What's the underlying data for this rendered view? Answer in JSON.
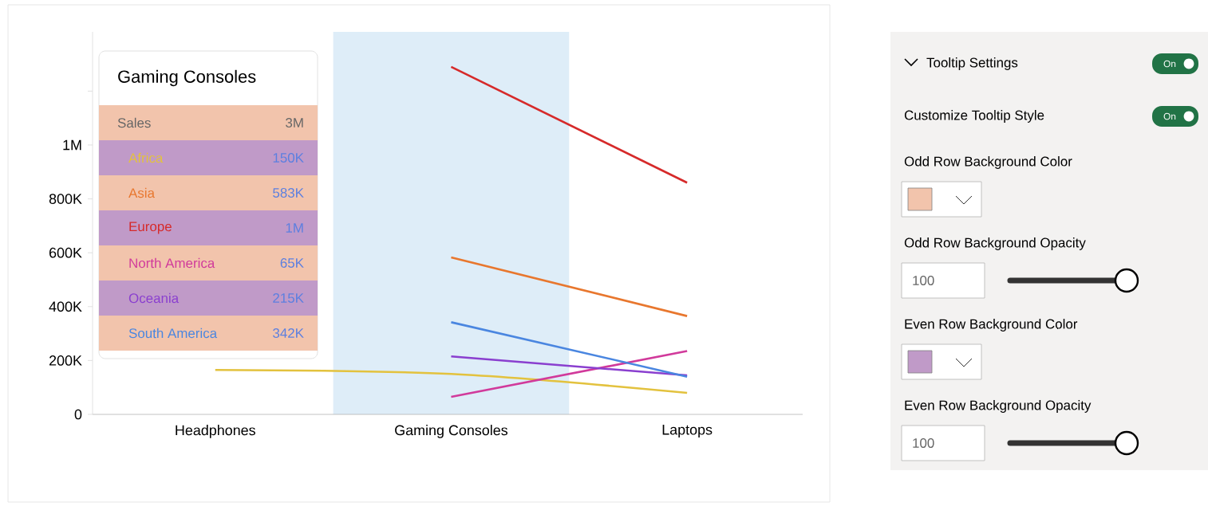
{
  "chart_data": {
    "type": "line",
    "categories": [
      "Headphones",
      "Gaming Consoles",
      "Laptops"
    ],
    "series": [
      {
        "name": "Africa",
        "color": "#e3c23e",
        "values": [
          165000,
          150000,
          80000
        ]
      },
      {
        "name": "Asia",
        "color": "#e8772e",
        "values": [
          null,
          583000,
          365000
        ]
      },
      {
        "name": "Europe",
        "color": "#d62a2a",
        "values": [
          null,
          1290000,
          860000
        ]
      },
      {
        "name": "North America",
        "color": "#d13a9b",
        "values": [
          null,
          65000,
          235000
        ]
      },
      {
        "name": "Oceania",
        "color": "#8a3fcf",
        "values": [
          null,
          215000,
          145000
        ]
      },
      {
        "name": "South America",
        "color": "#4a86e0",
        "values": [
          null,
          342000,
          140000
        ]
      }
    ],
    "ylim": [
      0,
      1420000
    ],
    "yticks": [
      0,
      {
        "value": 200000,
        "label": "200K"
      },
      {
        "value": 400000,
        "label": "400K"
      },
      {
        "value": 600000,
        "label": "600K"
      },
      {
        "value": 800000,
        "label": "800K"
      },
      {
        "value": 1000000,
        "label": "1M"
      },
      {
        "value": 1200000,
        "label": null
      }
    ],
    "bands": [
      {
        "axis": "x",
        "from": "Gaming Consoles",
        "to": "Gaming Consoles",
        "color": "#deedf8"
      }
    ],
    "annotations": [
      "Gaming Consoles",
      "Sales",
      "3M",
      "150K",
      "583K",
      "1M",
      "65K",
      "215K",
      "342K",
      "Tooltip Settings",
      "On",
      "Customize Tooltip Style",
      "On",
      "Odd Row Background Color",
      "Odd Row Background Opacity",
      "100",
      "Even Row Background Color",
      "Even Row Background Opacity",
      "100"
    ]
  }
}
